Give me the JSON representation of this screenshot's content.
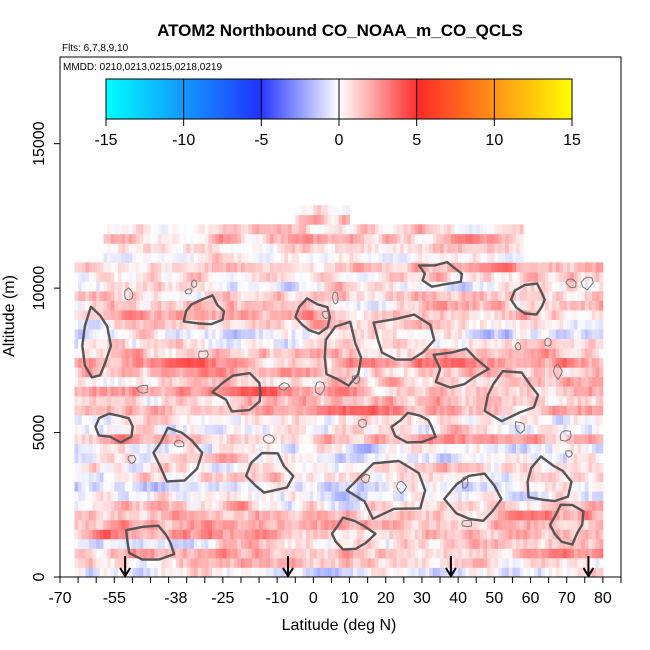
{
  "chart_data": {
    "type": "heatmap",
    "title": "ATOM2 Northbound CO_NOAA_m_CO_QCLS",
    "subtitle_flights": "Flts: 6,7,8,9,10",
    "subtitle_dates": "MMDD: 0210,0213,0215,0218,0219",
    "xlabel": "Latitude (deg N)",
    "ylabel": "Altitude (m)",
    "xlim": [
      -70,
      85
    ],
    "ylim": [
      0,
      18000
    ],
    "x_ticks": [
      -70,
      -55,
      -38,
      -25,
      -10,
      0,
      10,
      20,
      30,
      40,
      50,
      60,
      70,
      80
    ],
    "x_tick_labels": [
      "-70",
      "-55",
      "-38",
      "-25",
      "-10",
      "0",
      "10",
      "20",
      "30",
      "40",
      "50",
      "60",
      "70",
      "80"
    ],
    "y_ticks": [
      0,
      5000,
      10000,
      15000
    ],
    "y_tick_labels": [
      "0",
      "5000",
      "10000",
      "15000"
    ],
    "colorbar": {
      "min": -15,
      "max": 15,
      "ticks": [
        -15,
        -10,
        -5,
        0,
        5,
        10,
        15
      ],
      "tick_labels": [
        "-15",
        "-10",
        "-5",
        "0",
        "5",
        "10",
        "15"
      ],
      "colors": [
        "#00ffff",
        "#2244ff",
        "#ffffff",
        "#ff2222",
        "#ffff00"
      ]
    },
    "profile_markers_lat": [
      -52,
      -7,
      38,
      76
    ],
    "data_extent": {
      "lat_range": [
        -66,
        80
      ],
      "alt_range": [
        0,
        12800
      ]
    }
  }
}
